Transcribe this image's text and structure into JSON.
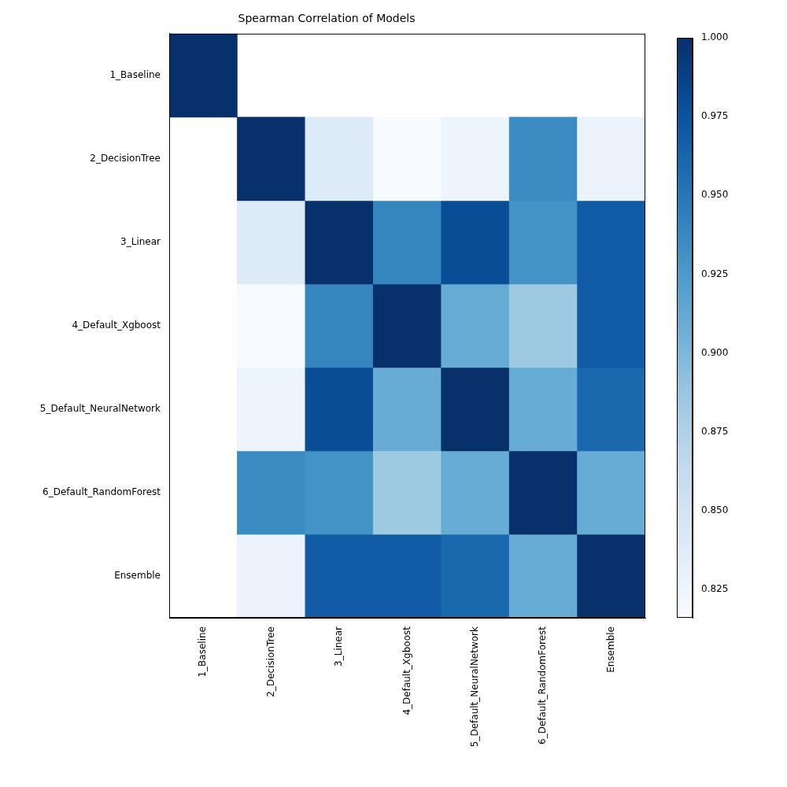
{
  "chart_data": {
    "type": "heatmap",
    "title": "Spearman Correlation of Models",
    "categories": [
      "1_Baseline",
      "2_DecisionTree",
      "3_Linear",
      "4_Default_Xgboost",
      "5_Default_NeuralNetwork",
      "6_Default_RandomForest",
      "Ensemble"
    ],
    "values": [
      [
        1.0,
        null,
        null,
        null,
        null,
        null,
        null
      ],
      [
        null,
        1.0,
        0.84,
        0.816,
        0.826,
        0.935,
        0.828
      ],
      [
        null,
        0.84,
        1.0,
        0.94,
        0.98,
        0.93,
        0.97
      ],
      [
        null,
        0.816,
        0.94,
        1.0,
        0.91,
        0.885,
        0.97
      ],
      [
        null,
        0.826,
        0.98,
        0.91,
        1.0,
        0.91,
        0.96
      ],
      [
        null,
        0.935,
        0.93,
        0.885,
        0.91,
        1.0,
        0.91
      ],
      [
        null,
        0.828,
        0.97,
        0.97,
        0.96,
        0.91,
        1.0
      ]
    ],
    "colorbar_range": [
      0.816,
      1.0
    ],
    "colorbar_ticks": [
      {
        "value": 0.825,
        "label": "0.825"
      },
      {
        "value": 0.85,
        "label": "0.850"
      },
      {
        "value": 0.875,
        "label": "0.875"
      },
      {
        "value": 0.9,
        "label": "0.900"
      },
      {
        "value": 0.925,
        "label": "0.925"
      },
      {
        "value": 0.95,
        "label": "0.950"
      },
      {
        "value": 0.975,
        "label": "0.975"
      },
      {
        "value": 1.0,
        "label": "1.000"
      }
    ]
  }
}
